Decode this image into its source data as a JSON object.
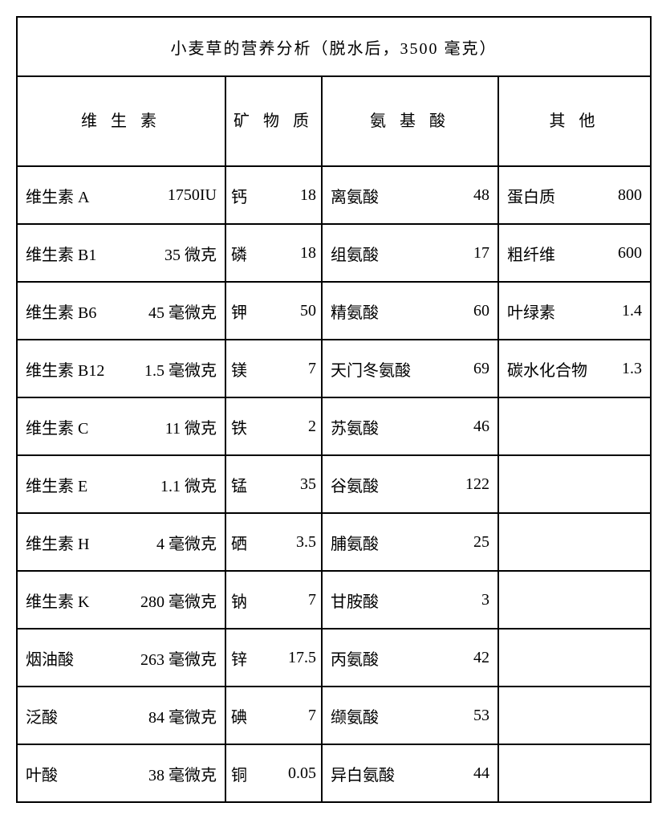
{
  "title": "小麦草的营养分析（脱水后，3500 毫克）",
  "headers": {
    "vitamins": "维 生 素",
    "minerals": "矿 物\n质",
    "amino": "氨 基 酸",
    "other": "其  他"
  },
  "rows": [
    {
      "vit_l": "维生素 A",
      "vit_v": "1750IU",
      "min_l": "钙",
      "min_v": "18",
      "am_l": "离氨酸",
      "am_v": "48",
      "ot_l": "蛋白质",
      "ot_v": "800"
    },
    {
      "vit_l": "维生素 B1",
      "vit_v": "35 微克",
      "min_l": "磷",
      "min_v": "18",
      "am_l": "组氨酸",
      "am_v": "17",
      "ot_l": "粗纤维",
      "ot_v": "600"
    },
    {
      "vit_l": "维生素 B6",
      "vit_v": "45 毫微克",
      "min_l": "钾",
      "min_v": "50",
      "am_l": "精氨酸",
      "am_v": "60",
      "ot_l": "叶绿素",
      "ot_v": "1.4"
    },
    {
      "vit_l": "维生素 B12",
      "vit_v": "1.5 毫微克",
      "min_l": "镁",
      "min_v": "7",
      "am_l": "天门冬氨酸",
      "am_v": "69",
      "ot_l": "碳水化合物",
      "ot_v": "1.3"
    },
    {
      "vit_l": "维生素 C",
      "vit_v": "11 微克",
      "min_l": "铁",
      "min_v": "2",
      "am_l": "苏氨酸",
      "am_v": "46",
      "ot_l": "",
      "ot_v": ""
    },
    {
      "vit_l": "维生素 E",
      "vit_v": "1.1 微克",
      "min_l": "锰",
      "min_v": "35",
      "am_l": "谷氨酸",
      "am_v": "122",
      "ot_l": "",
      "ot_v": ""
    },
    {
      "vit_l": "维生素 H",
      "vit_v": "4 毫微克",
      "min_l": "硒",
      "min_v": "3.5",
      "am_l": "脯氨酸",
      "am_v": "25",
      "ot_l": "",
      "ot_v": ""
    },
    {
      "vit_l": "维生素 K",
      "vit_v": "280 毫微克",
      "min_l": "钠",
      "min_v": "7",
      "am_l": "甘胺酸",
      "am_v": "3",
      "ot_l": "",
      "ot_v": ""
    },
    {
      "vit_l": "烟油酸",
      "vit_v": "263 毫微克",
      "min_l": "锌",
      "min_v": "17.5",
      "am_l": "丙氨酸",
      "am_v": "42",
      "ot_l": "",
      "ot_v": ""
    },
    {
      "vit_l": "泛酸",
      "vit_v": "84 毫微克",
      "min_l": "碘",
      "min_v": "7",
      "am_l": "缬氨酸",
      "am_v": "53",
      "ot_l": "",
      "ot_v": ""
    },
    {
      "vit_l": "叶酸",
      "vit_v": "38 毫微克",
      "min_l": "铜",
      "min_v": "0.05",
      "am_l": "异白氨酸",
      "am_v": "44",
      "ot_l": "",
      "ot_v": ""
    }
  ]
}
